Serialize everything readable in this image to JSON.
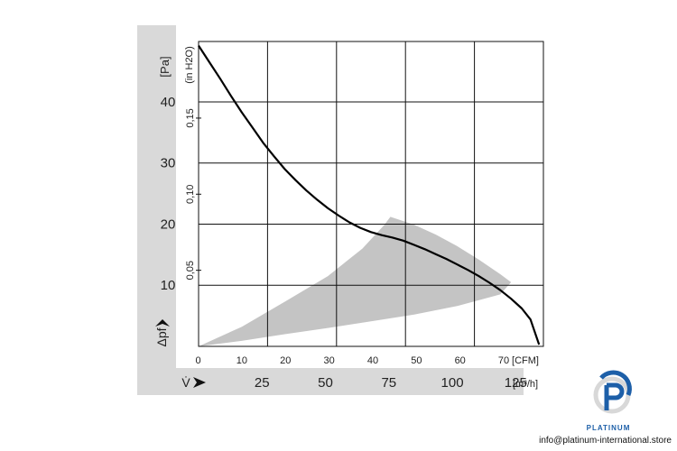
{
  "chart_data": {
    "type": "line",
    "left_axis_unit": "[Pa]",
    "left_axis_symbol": "Δpf",
    "right_axis_unit": "(in H2O)",
    "x_unit": "[CFM]",
    "x2_unit": "[m³/h]",
    "x2_symbol": "V̇",
    "x_ticks": [
      0,
      10,
      20,
      30,
      40,
      50,
      60,
      70
    ],
    "x2_ticks": [
      25,
      50,
      75,
      100,
      125
    ],
    "y_ticks": [
      10,
      20,
      30,
      40
    ],
    "y2_ticks": [
      "0,05",
      "0,10",
      "0,15"
    ],
    "xlim": [
      0,
      80
    ],
    "ylim": [
      0,
      49
    ],
    "grid": true,
    "series": [
      {
        "x": [
          0,
          2.5,
          5,
          7.5,
          10,
          12.5,
          15,
          17.5,
          20,
          22.5,
          25,
          27.5,
          30,
          32.5,
          35,
          37.5,
          40,
          42.5,
          45,
          47.5,
          50,
          52.5,
          55,
          57.5,
          60,
          62.5,
          65,
          67.5,
          70,
          72.5,
          75,
          77,
          79
        ],
        "y": [
          49.2,
          46.5,
          43.8,
          41.0,
          38.3,
          35.8,
          33.3,
          31.1,
          29.0,
          27.2,
          25.5,
          24.0,
          22.6,
          21.4,
          20.3,
          19.4,
          18.7,
          18.2,
          17.8,
          17.3,
          16.6,
          15.9,
          15.1,
          14.3,
          13.4,
          12.5,
          11.5,
          10.4,
          9.2,
          7.8,
          6.2,
          4.4,
          0.3
        ]
      }
    ],
    "operating_area": {
      "x": [
        0,
        10,
        20,
        30,
        38,
        43,
        44.5,
        50,
        55,
        60,
        65,
        70,
        72.5,
        70,
        60,
        50,
        40,
        30,
        20,
        10,
        0
      ],
      "y": [
        0,
        3.2,
        7.3,
        11.5,
        16.0,
        19.8,
        21.2,
        19.9,
        18.3,
        16.4,
        14.2,
        11.8,
        10.5,
        8.5,
        6.6,
        5.2,
        4.1,
        3.0,
        2.0,
        0.9,
        0
      ],
      "color": "#c4c4c4"
    }
  },
  "brand": {
    "name": "PLATINUM",
    "contact": "info@platinum-international.store",
    "color": "#1d5fa8"
  }
}
